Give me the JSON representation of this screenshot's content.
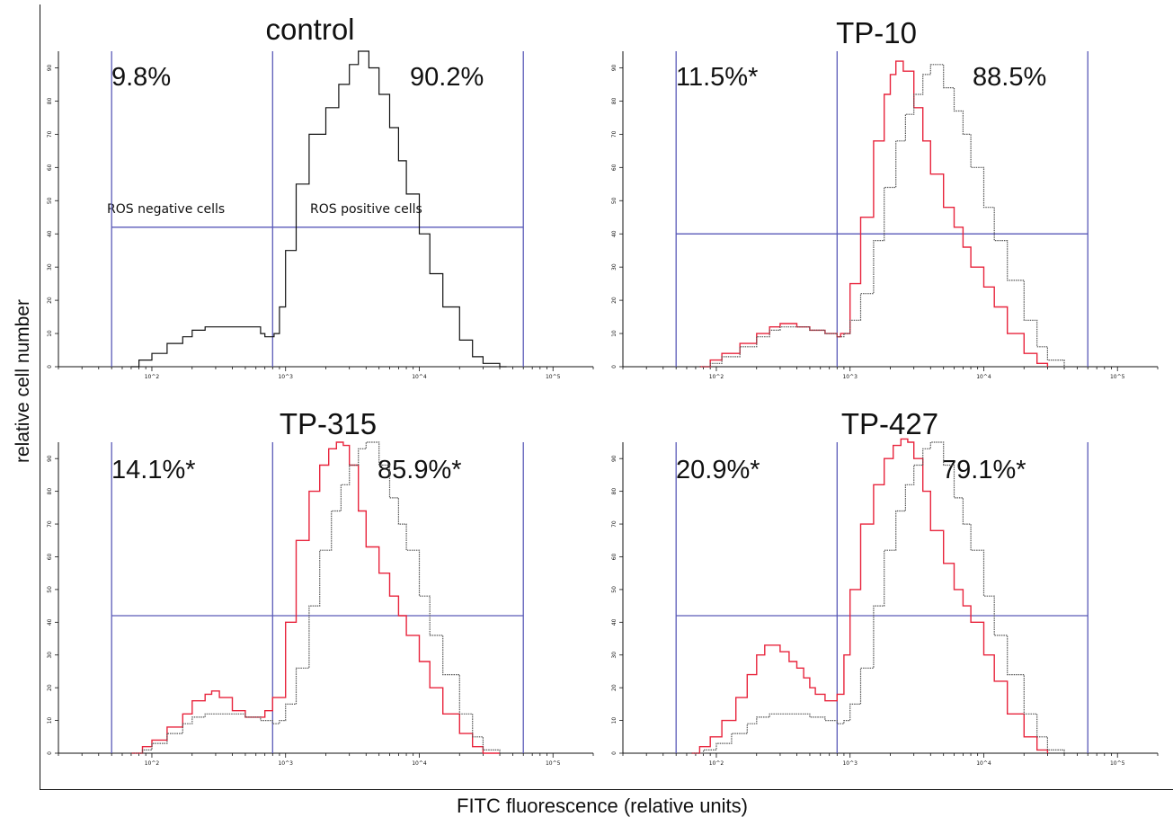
{
  "figure": {
    "ylabel": "relative cell number",
    "xlabel": "FITC fluorescence (relative units)"
  },
  "colors": {
    "treated": "#e8243c",
    "control": "#555555",
    "gate": "#5a5ab8",
    "frame": "#111111"
  },
  "chart_data": [
    {
      "type": "line",
      "title": "control",
      "xscale": "log",
      "xlim": [
        20,
        200000
      ],
      "ylim": [
        0,
        95
      ],
      "x_tick_labels": [
        "10^2",
        "10^3",
        "10^4",
        "10^5"
      ],
      "y_tick_labels": [
        "0",
        "10",
        "20",
        "30",
        "40",
        "50",
        "60",
        "70",
        "80",
        "90"
      ],
      "gate_labels": [
        "ROS negative cells",
        "ROS positive cells"
      ],
      "gates": {
        "x": [
          50,
          800,
          60000
        ],
        "y": 42
      },
      "percentages": {
        "negative": "9.8%",
        "positive": "90.2%"
      },
      "series": [
        {
          "style": "control-solid",
          "x": [
            70,
            80,
            100,
            130,
            170,
            200,
            250,
            350,
            500,
            650,
            700,
            800,
            820,
            900,
            1000,
            1200,
            1500,
            2000,
            2500,
            3000,
            3500,
            3800,
            4200,
            5000,
            6000,
            7000,
            8000,
            10000,
            12000,
            15000,
            20000,
            25000,
            30000,
            40000,
            45000
          ],
          "y": [
            0,
            2,
            4,
            7,
            9,
            11,
            12,
            12,
            12,
            10,
            9,
            9,
            10,
            18,
            35,
            55,
            70,
            78,
            85,
            91,
            95,
            95,
            90,
            82,
            72,
            62,
            52,
            40,
            28,
            18,
            8,
            3,
            1,
            0,
            0
          ]
        }
      ]
    },
    {
      "type": "line",
      "title": "TP-10",
      "xscale": "log",
      "xlim": [
        20,
        200000
      ],
      "ylim": [
        0,
        95
      ],
      "x_tick_labels": [
        "10^2",
        "10^3",
        "10^4",
        "10^5"
      ],
      "y_tick_labels": [
        "0",
        "10",
        "20",
        "30",
        "40",
        "50",
        "60",
        "70",
        "80",
        "90"
      ],
      "gates": {
        "x": [
          50,
          800,
          60000
        ],
        "y": 40
      },
      "percentages": {
        "negative": "11.5%*",
        "positive": "88.5%"
      },
      "series": [
        {
          "style": "treated",
          "x": [
            75,
            90,
            110,
            150,
            200,
            250,
            300,
            400,
            500,
            650,
            800,
            850,
            1000,
            1200,
            1500,
            1800,
            2000,
            2200,
            2500,
            3000,
            3500,
            4000,
            5000,
            6000,
            7000,
            8000,
            10000,
            12000,
            15000,
            20000,
            25000,
            30000
          ],
          "y": [
            0,
            2,
            4,
            7,
            10,
            12,
            13,
            12,
            11,
            10,
            9,
            10,
            25,
            45,
            68,
            82,
            88,
            92,
            89,
            78,
            68,
            58,
            48,
            42,
            36,
            30,
            24,
            18,
            10,
            4,
            1,
            0
          ]
        },
        {
          "style": "control-dotted",
          "x": [
            75,
            90,
            110,
            150,
            200,
            250,
            300,
            400,
            500,
            650,
            800,
            900,
            1000,
            1200,
            1500,
            1800,
            2200,
            2600,
            3000,
            3500,
            4000,
            5000,
            6000,
            7000,
            8000,
            10000,
            12000,
            15000,
            20000,
            25000,
            30000,
            40000
          ],
          "y": [
            0,
            1,
            3,
            6,
            9,
            11,
            12,
            12,
            11,
            10,
            9,
            10,
            14,
            22,
            38,
            54,
            68,
            76,
            82,
            88,
            91,
            84,
            77,
            70,
            60,
            48,
            38,
            26,
            14,
            6,
            2,
            0
          ]
        }
      ]
    },
    {
      "type": "line",
      "title": "TP-315",
      "xscale": "log",
      "xlim": [
        20,
        200000
      ],
      "ylim": [
        0,
        95
      ],
      "x_tick_labels": [
        "10^2",
        "10^3",
        "10^4",
        "10^5"
      ],
      "y_tick_labels": [
        "0",
        "10",
        "20",
        "30",
        "40",
        "50",
        "60",
        "70",
        "80",
        "90"
      ],
      "gates": {
        "x": [
          50,
          800,
          60000
        ],
        "y": 42
      },
      "percentages": {
        "negative": "14.1%*",
        "positive": "85.9%*"
      },
      "series": [
        {
          "style": "treated",
          "x": [
            70,
            85,
            100,
            130,
            170,
            200,
            250,
            280,
            320,
            400,
            500,
            600,
            700,
            800,
            1000,
            1200,
            1500,
            1800,
            2100,
            2400,
            2700,
            3000,
            3500,
            4000,
            5000,
            6000,
            7000,
            8000,
            10000,
            12000,
            15000,
            20000,
            25000,
            30000,
            40000
          ],
          "y": [
            0,
            2,
            4,
            8,
            12,
            16,
            18,
            19,
            17,
            13,
            11,
            11,
            13,
            17,
            40,
            65,
            80,
            88,
            93,
            95,
            94,
            88,
            74,
            63,
            55,
            48,
            42,
            36,
            28,
            20,
            12,
            6,
            2,
            0,
            0
          ]
        },
        {
          "style": "control-dotted",
          "x": [
            70,
            85,
            100,
            130,
            170,
            200,
            250,
            300,
            400,
            500,
            650,
            800,
            900,
            1000,
            1200,
            1500,
            1800,
            2200,
            2600,
            3000,
            3500,
            4000,
            5000,
            6000,
            7000,
            8000,
            10000,
            12000,
            15000,
            20000,
            25000,
            30000,
            40000
          ],
          "y": [
            0,
            1,
            3,
            6,
            9,
            11,
            12,
            12,
            12,
            11,
            10,
            9,
            10,
            15,
            26,
            45,
            62,
            74,
            82,
            88,
            93,
            95,
            88,
            78,
            70,
            62,
            48,
            36,
            24,
            12,
            5,
            1,
            0
          ]
        }
      ]
    },
    {
      "type": "line",
      "title": "TP-427",
      "xscale": "log",
      "xlim": [
        20,
        200000
      ],
      "ylim": [
        0,
        95
      ],
      "x_tick_labels": [
        "10^2",
        "10^3",
        "10^4",
        "10^5"
      ],
      "y_tick_labels": [
        "0",
        "10",
        "20",
        "30",
        "40",
        "50",
        "60",
        "70",
        "80",
        "90"
      ],
      "gates": {
        "x": [
          50,
          800,
          60000
        ],
        "y": 42
      },
      "percentages": {
        "negative": "20.9%*",
        "positive": "79.1%*"
      },
      "series": [
        {
          "style": "treated",
          "x": [
            65,
            75,
            90,
            110,
            140,
            170,
            200,
            230,
            260,
            300,
            350,
            400,
            450,
            500,
            550,
            650,
            800,
            900,
            1000,
            1200,
            1500,
            1800,
            2100,
            2400,
            2700,
            3000,
            3500,
            4000,
            5000,
            6000,
            7000,
            8000,
            10000,
            12000,
            15000,
            20000,
            25000,
            30000
          ],
          "y": [
            0,
            2,
            5,
            10,
            17,
            24,
            30,
            33,
            33,
            31,
            28,
            26,
            23,
            20,
            18,
            16,
            18,
            30,
            50,
            70,
            82,
            90,
            94,
            96,
            95,
            90,
            80,
            68,
            58,
            50,
            45,
            40,
            30,
            22,
            12,
            5,
            1,
            0
          ]
        },
        {
          "style": "control-dotted",
          "x": [
            65,
            80,
            100,
            130,
            170,
            200,
            250,
            300,
            400,
            500,
            650,
            800,
            900,
            1000,
            1200,
            1500,
            1800,
            2200,
            2600,
            3000,
            3500,
            4000,
            5000,
            6000,
            7000,
            8000,
            10000,
            12000,
            15000,
            20000,
            25000,
            30000,
            40000
          ],
          "y": [
            0,
            1,
            3,
            6,
            9,
            11,
            12,
            12,
            12,
            11,
            10,
            9,
            10,
            15,
            26,
            45,
            62,
            74,
            82,
            88,
            93,
            95,
            88,
            78,
            70,
            62,
            48,
            36,
            24,
            12,
            5,
            1,
            0
          ]
        }
      ]
    }
  ]
}
